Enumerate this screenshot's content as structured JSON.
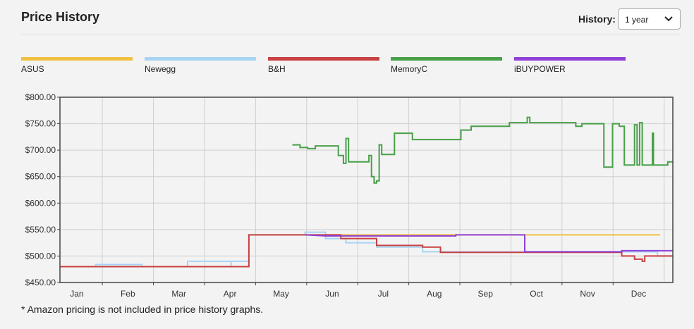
{
  "header": {
    "title": "Price History",
    "history_label": "History:",
    "history_value": "1 year"
  },
  "footnote": "* Amazon pricing is not included in price history graphs.",
  "colors": {
    "ASUS": "#f0c040",
    "Newegg": "#a8d4f4",
    "B&H": "#c84040",
    "MemoryC": "#48a048",
    "iBUYPOWER": "#9040d8"
  },
  "chart_data": {
    "type": "line",
    "title": "",
    "xlabel": "",
    "ylabel": "",
    "ylim": [
      450,
      800
    ],
    "xlim": [
      0,
      12
    ],
    "yticks": [
      "$800.00",
      "$750.00",
      "$700.00",
      "$650.00",
      "$600.00",
      "$550.00",
      "$500.00",
      "$450.00"
    ],
    "yvalues": [
      800,
      750,
      700,
      650,
      600,
      550,
      500,
      450
    ],
    "xticks": [
      "Jan",
      "Feb",
      "Mar",
      "Apr",
      "May",
      "Jun",
      "Jul",
      "Aug",
      "Sep",
      "Oct",
      "Nov",
      "Dec"
    ],
    "grid": true,
    "legend": "top",
    "series": [
      {
        "name": "ASUS",
        "color": "#f0c040",
        "points": [
          [
            3.8,
            540
          ],
          [
            11.75,
            540
          ]
        ]
      },
      {
        "name": "Newegg",
        "color": "#a8d4f4",
        "points": [
          [
            0,
            480
          ],
          [
            0.7,
            480
          ],
          [
            0.7,
            484
          ],
          [
            1.6,
            484
          ],
          [
            1.6,
            480
          ],
          [
            2.5,
            480
          ],
          [
            2.5,
            490
          ],
          [
            3.35,
            490
          ],
          [
            3.35,
            480
          ],
          [
            3.35,
            490
          ],
          [
            3.7,
            490
          ],
          [
            3.7,
            540
          ],
          [
            4.8,
            540
          ],
          [
            4.8,
            545
          ],
          [
            5.2,
            545
          ],
          [
            5.2,
            533
          ],
          [
            5.6,
            533
          ],
          [
            5.6,
            525
          ],
          [
            6.2,
            525
          ],
          [
            6.2,
            517
          ],
          [
            7.1,
            517
          ],
          [
            7.1,
            508
          ],
          [
            7.4,
            508
          ],
          [
            11.7,
            508
          ],
          [
            11.7,
            500
          ],
          [
            12,
            500
          ]
        ]
      },
      {
        "name": "B&H",
        "color": "#c84040",
        "points": [
          [
            0,
            480
          ],
          [
            3.7,
            480
          ],
          [
            3.7,
            540
          ],
          [
            5.5,
            540
          ],
          [
            5.5,
            533
          ],
          [
            6.2,
            533
          ],
          [
            6.2,
            520
          ],
          [
            7.1,
            520
          ],
          [
            7.1,
            517
          ],
          [
            7.45,
            517
          ],
          [
            7.45,
            507
          ],
          [
            11.0,
            507
          ],
          [
            11.0,
            500
          ],
          [
            11.25,
            500
          ],
          [
            11.25,
            494
          ],
          [
            11.4,
            494
          ],
          [
            11.4,
            490
          ],
          [
            11.45,
            490
          ],
          [
            11.45,
            500
          ],
          [
            12,
            500
          ]
        ]
      },
      {
        "name": "MemoryC",
        "color": "#48a048",
        "points": [
          [
            4.55,
            710
          ],
          [
            4.7,
            710
          ],
          [
            4.7,
            705
          ],
          [
            4.85,
            705
          ],
          [
            4.85,
            703
          ],
          [
            5.0,
            703
          ],
          [
            5.0,
            708
          ],
          [
            5.45,
            708
          ],
          [
            5.45,
            690
          ],
          [
            5.55,
            690
          ],
          [
            5.55,
            675
          ],
          [
            5.6,
            675
          ],
          [
            5.6,
            722
          ],
          [
            5.65,
            722
          ],
          [
            5.65,
            678
          ],
          [
            6.05,
            678
          ],
          [
            6.05,
            690
          ],
          [
            6.1,
            690
          ],
          [
            6.1,
            650
          ],
          [
            6.15,
            650
          ],
          [
            6.15,
            638
          ],
          [
            6.2,
            638
          ],
          [
            6.2,
            642
          ],
          [
            6.25,
            642
          ],
          [
            6.25,
            710
          ],
          [
            6.3,
            710
          ],
          [
            6.3,
            692
          ],
          [
            6.55,
            692
          ],
          [
            6.55,
            732
          ],
          [
            6.9,
            732
          ],
          [
            6.9,
            720
          ],
          [
            7.85,
            720
          ],
          [
            7.85,
            738
          ],
          [
            8.05,
            738
          ],
          [
            8.05,
            745
          ],
          [
            8.8,
            745
          ],
          [
            8.8,
            752
          ],
          [
            9.15,
            752
          ],
          [
            9.15,
            762
          ],
          [
            9.2,
            762
          ],
          [
            9.2,
            752
          ],
          [
            10.1,
            752
          ],
          [
            10.1,
            745
          ],
          [
            10.22,
            745
          ],
          [
            10.22,
            750
          ],
          [
            10.65,
            750
          ],
          [
            10.65,
            668
          ],
          [
            10.82,
            668
          ],
          [
            10.82,
            750
          ],
          [
            10.95,
            750
          ],
          [
            10.95,
            745
          ],
          [
            11.05,
            745
          ],
          [
            11.05,
            672
          ],
          [
            11.25,
            672
          ],
          [
            11.25,
            748
          ],
          [
            11.3,
            748
          ],
          [
            11.3,
            672
          ],
          [
            11.35,
            672
          ],
          [
            11.35,
            752
          ],
          [
            11.4,
            752
          ],
          [
            11.4,
            672
          ],
          [
            11.6,
            672
          ],
          [
            11.6,
            732
          ],
          [
            11.62,
            732
          ],
          [
            11.62,
            672
          ],
          [
            11.9,
            672
          ],
          [
            11.9,
            678
          ],
          [
            12,
            678
          ]
        ]
      },
      {
        "name": "iBUYPOWER",
        "color": "#9040d8",
        "points": [
          [
            4.8,
            540
          ],
          [
            5.2,
            538
          ],
          [
            7.75,
            538
          ],
          [
            7.75,
            540
          ],
          [
            9.1,
            540
          ],
          [
            9.1,
            508
          ],
          [
            11.0,
            508
          ],
          [
            11.0,
            510
          ],
          [
            12,
            510
          ]
        ]
      }
    ]
  }
}
